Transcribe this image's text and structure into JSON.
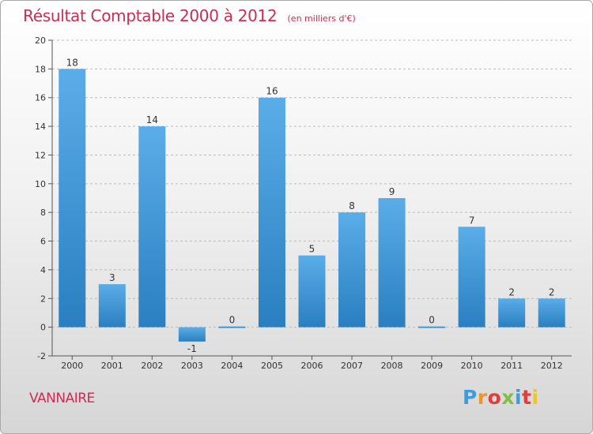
{
  "title": "Résultat Comptable 2000 à 2012",
  "subtitle": "(en milliers d'€)",
  "commune": "VANNAIRE",
  "brand": "Proxiti",
  "colors": {
    "title": "#cc2d52",
    "bar_light": "#5aade8",
    "bar_dark": "#2a7fc0",
    "axis": "#555555",
    "grid": "#bbbbbb",
    "brand_letters": [
      "#3b9de0",
      "#f0922b",
      "#e23c3c",
      "#7cc142",
      "#3b9de0",
      "#e23c3c",
      "#f0c428"
    ]
  },
  "chart_data": {
    "type": "bar",
    "title": "Résultat Comptable 2000 à 2012",
    "subtitle": "(en milliers d'€)",
    "xlabel": "",
    "ylabel": "",
    "categories": [
      "2000",
      "2001",
      "2002",
      "2003",
      "2004",
      "2005",
      "2006",
      "2007",
      "2008",
      "2009",
      "2010",
      "2011",
      "2012"
    ],
    "values": [
      18,
      3,
      14,
      -1,
      0,
      16,
      5,
      8,
      9,
      0,
      7,
      2,
      2
    ],
    "ylim": [
      -2,
      20
    ],
    "yticks": [
      "-2",
      "0",
      "2",
      "4",
      "6",
      "8",
      "10",
      "12",
      "14",
      "16",
      "18",
      "20"
    ],
    "grid": true,
    "legend": "none"
  }
}
